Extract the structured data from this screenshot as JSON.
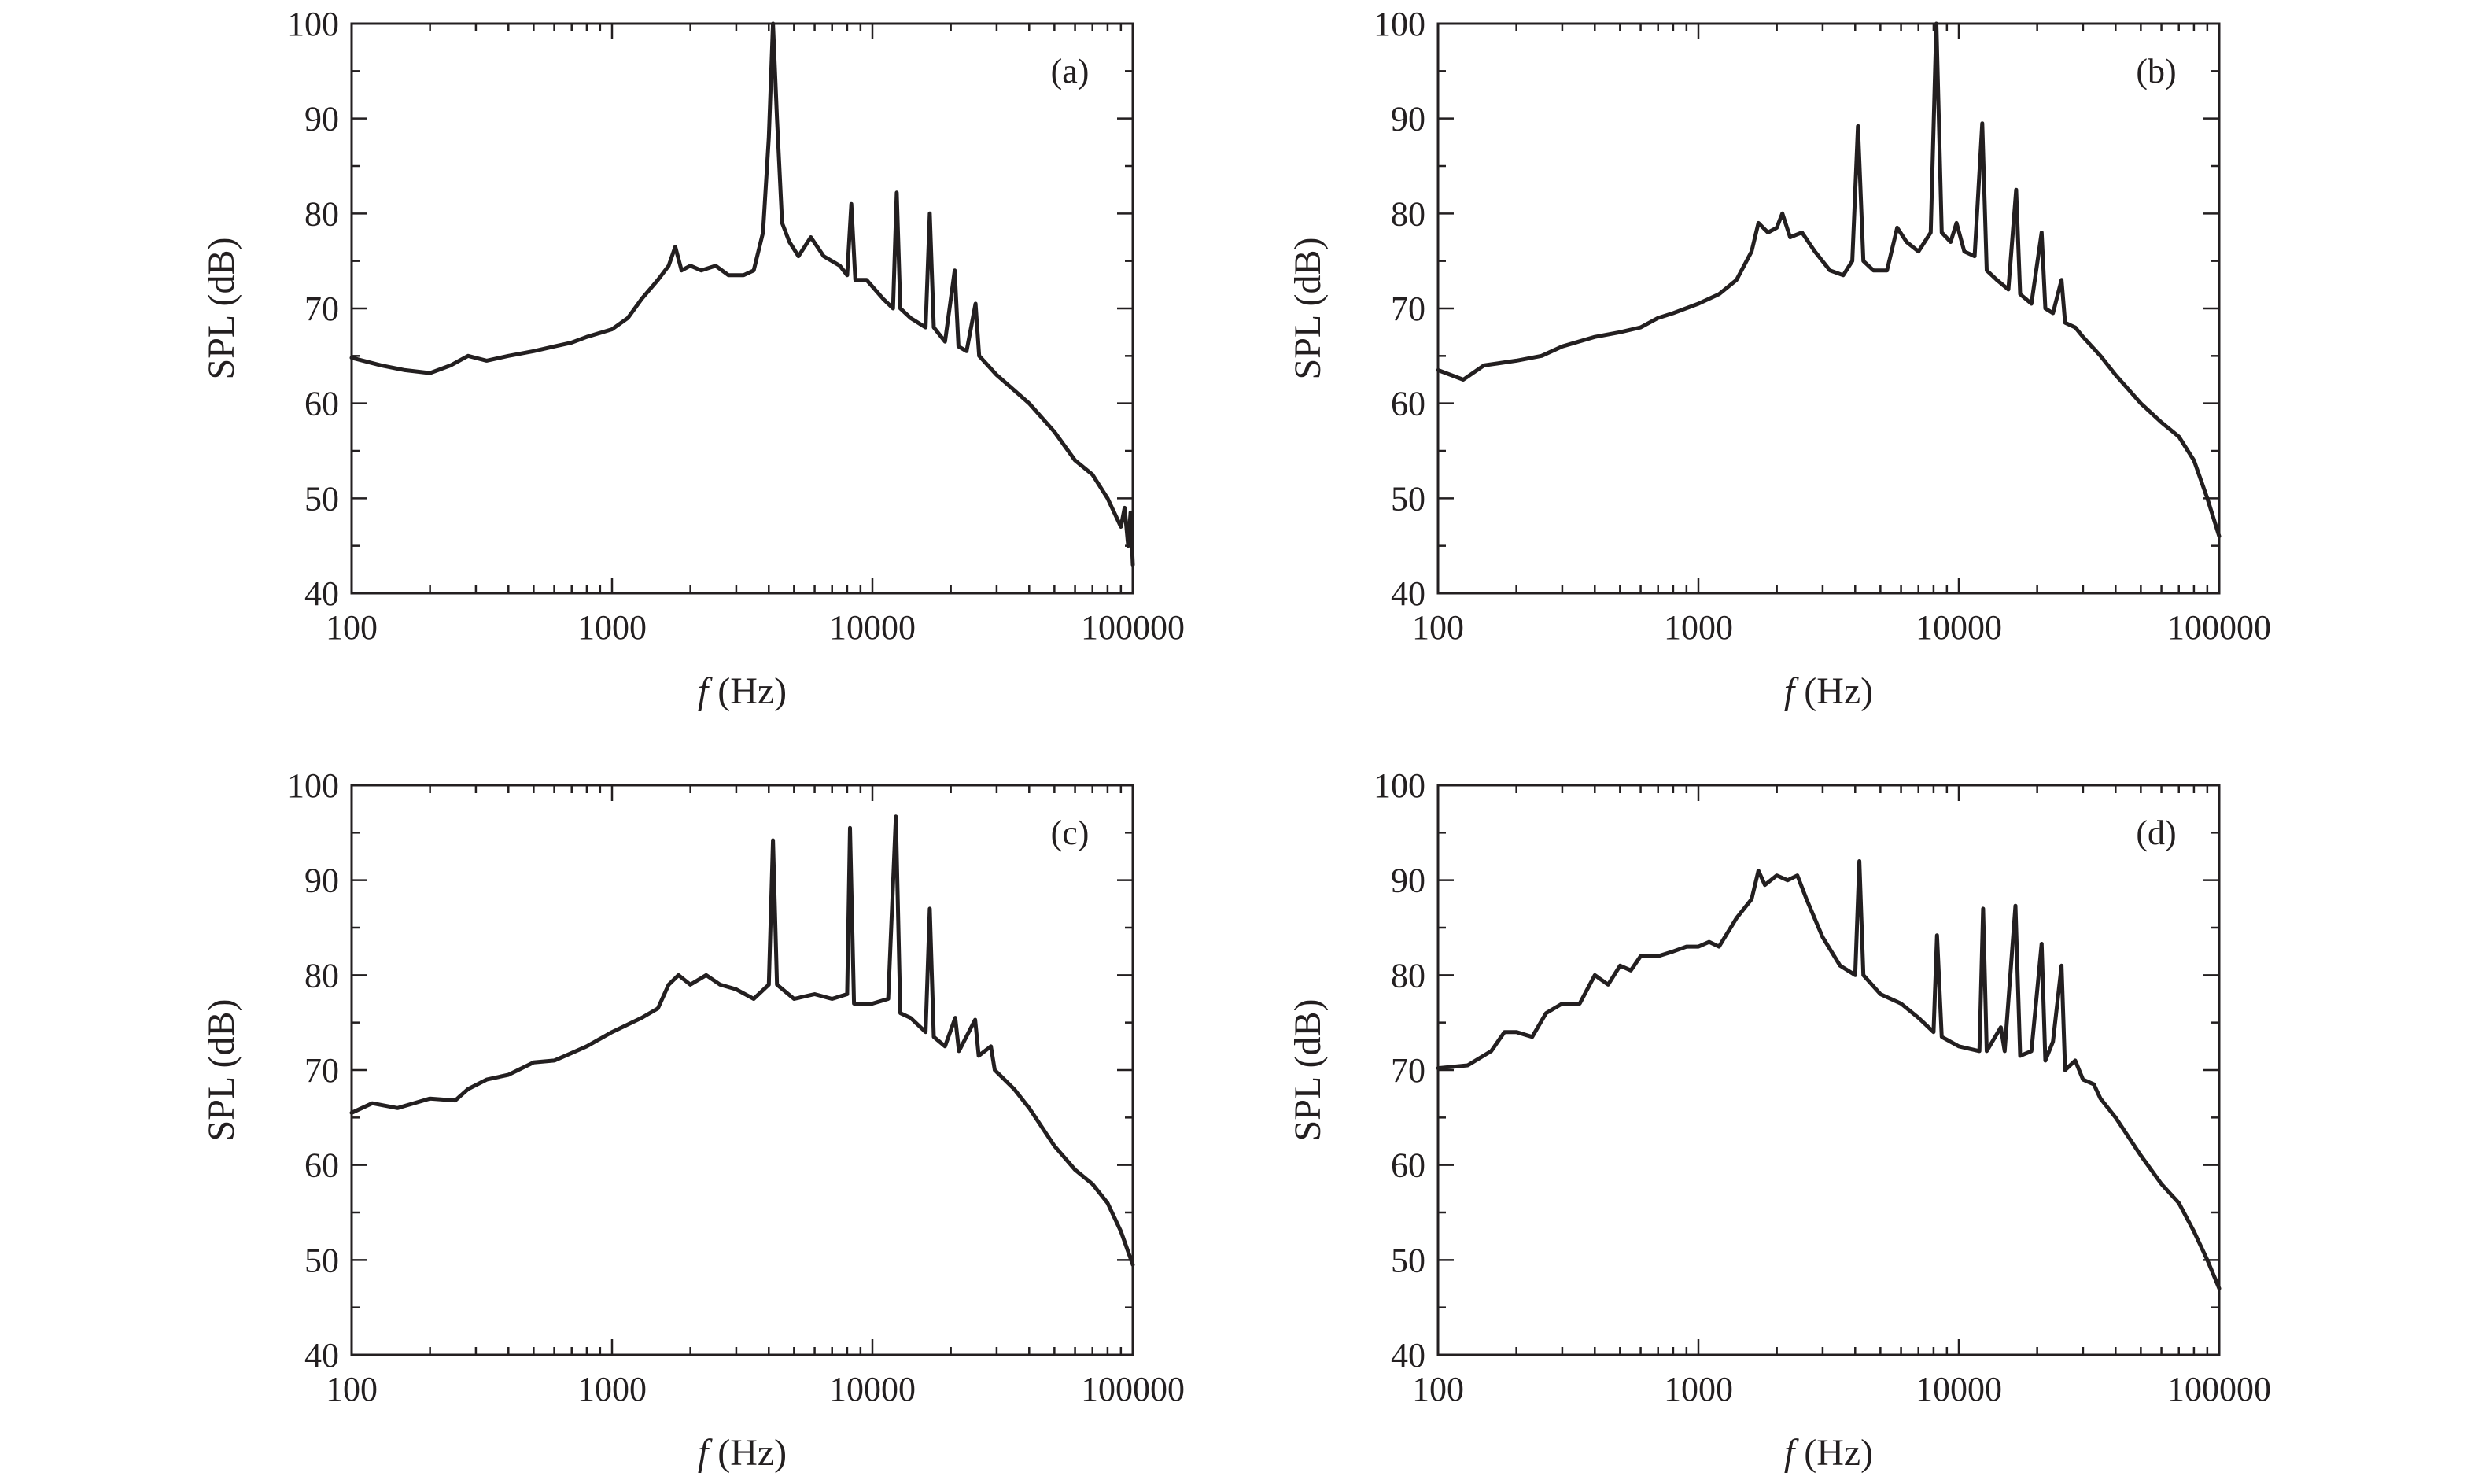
{
  "chart_data": [
    {
      "type": "line",
      "panel_label": "(a)",
      "xlabel_italic": "f",
      "xlabel_rest": " (Hz)",
      "ylabel": "SPL (dB)",
      "xscale": "log",
      "xlim": [
        100,
        100000
      ],
      "ylim": [
        40,
        100
      ],
      "xticks": [
        100,
        1000,
        10000,
        100000
      ],
      "xtick_labels": [
        "100",
        "1000",
        "10000",
        "100000"
      ],
      "yticks": [
        40,
        50,
        60,
        70,
        80,
        90,
        100
      ],
      "ytick_labels": [
        "40",
        "50",
        "60",
        "70",
        "80",
        "90",
        "100"
      ],
      "grid": false,
      "series": [
        {
          "color": "#231f20",
          "points": [
            [
              100,
              64.8
            ],
            [
              130,
              64
            ],
            [
              160,
              63.5
            ],
            [
              200,
              63.2
            ],
            [
              240,
              64
            ],
            [
              280,
              65
            ],
            [
              330,
              64.5
            ],
            [
              400,
              65
            ],
            [
              500,
              65.5
            ],
            [
              600,
              66
            ],
            [
              700,
              66.4
            ],
            [
              800,
              67
            ],
            [
              1000,
              67.8
            ],
            [
              1150,
              69
            ],
            [
              1300,
              71
            ],
            [
              1500,
              73
            ],
            [
              1650,
              74.5
            ],
            [
              1750,
              76.5
            ],
            [
              1850,
              74
            ],
            [
              2000,
              74.5
            ],
            [
              2200,
              74
            ],
            [
              2500,
              74.5
            ],
            [
              2800,
              73.5
            ],
            [
              3200,
              73.5
            ],
            [
              3500,
              74
            ],
            [
              3800,
              78
            ],
            [
              4000,
              88
            ],
            [
              4150,
              100
            ],
            [
              4300,
              90
            ],
            [
              4500,
              79
            ],
            [
              4800,
              77
            ],
            [
              5200,
              75.5
            ],
            [
              5800,
              77.5
            ],
            [
              6500,
              75.5
            ],
            [
              7500,
              74.5
            ],
            [
              8000,
              73.5
            ],
            [
              8300,
              81
            ],
            [
              8600,
              73
            ],
            [
              9500,
              73
            ],
            [
              11000,
              71
            ],
            [
              12000,
              70
            ],
            [
              12400,
              82.2
            ],
            [
              12800,
              70
            ],
            [
              14000,
              69
            ],
            [
              16000,
              68
            ],
            [
              16600,
              80
            ],
            [
              17200,
              68
            ],
            [
              19000,
              66.5
            ],
            [
              20700,
              74
            ],
            [
              21400,
              66
            ],
            [
              23000,
              65.5
            ],
            [
              24900,
              70.5
            ],
            [
              25700,
              65
            ],
            [
              30000,
              63
            ],
            [
              40000,
              60
            ],
            [
              50000,
              57
            ],
            [
              60000,
              54
            ],
            [
              70000,
              52.5
            ],
            [
              80000,
              50
            ],
            [
              90000,
              47
            ],
            [
              93000,
              49
            ],
            [
              96000,
              45
            ],
            [
              98000,
              48.5
            ],
            [
              100000,
              43
            ]
          ]
        }
      ]
    },
    {
      "type": "line",
      "panel_label": "(b)",
      "xlabel_italic": "f",
      "xlabel_rest": " (Hz)",
      "ylabel": "SPL (dB)",
      "xscale": "log",
      "xlim": [
        100,
        100000
      ],
      "ylim": [
        40,
        100
      ],
      "xticks": [
        100,
        1000,
        10000,
        100000
      ],
      "xtick_labels": [
        "100",
        "1000",
        "10000",
        "100000"
      ],
      "yticks": [
        40,
        50,
        60,
        70,
        80,
        90,
        100
      ],
      "ytick_labels": [
        "40",
        "50",
        "60",
        "70",
        "80",
        "90",
        "100"
      ],
      "grid": false,
      "series": [
        {
          "color": "#231f20",
          "points": [
            [
              100,
              63.5
            ],
            [
              125,
              62.5
            ],
            [
              150,
              64
            ],
            [
              200,
              64.5
            ],
            [
              250,
              65
            ],
            [
              300,
              66
            ],
            [
              400,
              67
            ],
            [
              500,
              67.5
            ],
            [
              600,
              68
            ],
            [
              700,
              69
            ],
            [
              800,
              69.5
            ],
            [
              1000,
              70.5
            ],
            [
              1200,
              71.5
            ],
            [
              1400,
              73
            ],
            [
              1600,
              76
            ],
            [
              1700,
              79
            ],
            [
              1850,
              78
            ],
            [
              2000,
              78.5
            ],
            [
              2100,
              80
            ],
            [
              2250,
              77.5
            ],
            [
              2500,
              78
            ],
            [
              2800,
              76
            ],
            [
              3200,
              74
            ],
            [
              3600,
              73.5
            ],
            [
              3900,
              75
            ],
            [
              4100,
              89.2
            ],
            [
              4300,
              75
            ],
            [
              4700,
              74
            ],
            [
              5300,
              74
            ],
            [
              5800,
              78.5
            ],
            [
              6300,
              77
            ],
            [
              7000,
              76
            ],
            [
              7800,
              78
            ],
            [
              8200,
              100
            ],
            [
              8600,
              78
            ],
            [
              9300,
              77
            ],
            [
              9800,
              79
            ],
            [
              10500,
              76
            ],
            [
              11500,
              75.5
            ],
            [
              12300,
              89.5
            ],
            [
              12800,
              74
            ],
            [
              14000,
              73
            ],
            [
              15500,
              72
            ],
            [
              16600,
              82.5
            ],
            [
              17200,
              71.5
            ],
            [
              19000,
              70.5
            ],
            [
              20800,
              78
            ],
            [
              21500,
              70
            ],
            [
              23000,
              69.5
            ],
            [
              24800,
              73
            ],
            [
              25600,
              68.5
            ],
            [
              28000,
              68
            ],
            [
              30000,
              67
            ],
            [
              35000,
              65
            ],
            [
              40000,
              63
            ],
            [
              50000,
              60
            ],
            [
              60000,
              58
            ],
            [
              70000,
              56.5
            ],
            [
              80000,
              54
            ],
            [
              90000,
              50
            ],
            [
              100000,
              46
            ]
          ]
        }
      ]
    },
    {
      "type": "line",
      "panel_label": "(c)",
      "xlabel_italic": "f",
      "xlabel_rest": " (Hz)",
      "ylabel": "SPL (dB)",
      "xscale": "log",
      "xlim": [
        100,
        100000
      ],
      "ylim": [
        40,
        100
      ],
      "xticks": [
        100,
        1000,
        10000,
        100000
      ],
      "xtick_labels": [
        "100",
        "1000",
        "10000",
        "100000"
      ],
      "yticks": [
        40,
        50,
        60,
        70,
        80,
        90,
        100
      ],
      "ytick_labels": [
        "40",
        "50",
        "60",
        "70",
        "80",
        "90",
        "100"
      ],
      "grid": false,
      "series": [
        {
          "color": "#231f20",
          "points": [
            [
              100,
              65.5
            ],
            [
              120,
              66.5
            ],
            [
              150,
              66
            ],
            [
              200,
              67
            ],
            [
              250,
              66.8
            ],
            [
              280,
              68
            ],
            [
              330,
              69
            ],
            [
              400,
              69.5
            ],
            [
              500,
              70.8
            ],
            [
              600,
              71
            ],
            [
              700,
              71.8
            ],
            [
              800,
              72.5
            ],
            [
              1000,
              74
            ],
            [
              1300,
              75.5
            ],
            [
              1500,
              76.5
            ],
            [
              1650,
              79
            ],
            [
              1800,
              80
            ],
            [
              2000,
              79
            ],
            [
              2300,
              80
            ],
            [
              2600,
              79
            ],
            [
              3000,
              78.5
            ],
            [
              3500,
              77.5
            ],
            [
              4000,
              79
            ],
            [
              4150,
              94.2
            ],
            [
              4300,
              79
            ],
            [
              5000,
              77.5
            ],
            [
              6000,
              78
            ],
            [
              7000,
              77.5
            ],
            [
              8000,
              78
            ],
            [
              8200,
              95.5
            ],
            [
              8500,
              77
            ],
            [
              10000,
              77
            ],
            [
              11500,
              77.5
            ],
            [
              12300,
              96.7
            ],
            [
              12800,
              76
            ],
            [
              14000,
              75.5
            ],
            [
              16000,
              74
            ],
            [
              16600,
              87
            ],
            [
              17200,
              73.5
            ],
            [
              19000,
              72.5
            ],
            [
              20800,
              75.5
            ],
            [
              21500,
              72
            ],
            [
              24800,
              75.3
            ],
            [
              25600,
              71.5
            ],
            [
              28500,
              72.5
            ],
            [
              29500,
              70
            ],
            [
              35000,
              68
            ],
            [
              40000,
              66
            ],
            [
              50000,
              62
            ],
            [
              60000,
              59.5
            ],
            [
              70000,
              58
            ],
            [
              80000,
              56
            ],
            [
              90000,
              53
            ],
            [
              100000,
              49.5
            ]
          ]
        }
      ]
    },
    {
      "type": "line",
      "panel_label": "(d)",
      "xlabel_italic": "f",
      "xlabel_rest": " (Hz)",
      "ylabel": "SPL (dB)",
      "xscale": "log",
      "xlim": [
        100,
        100000
      ],
      "ylim": [
        40,
        100
      ],
      "xticks": [
        100,
        1000,
        10000,
        100000
      ],
      "xtick_labels": [
        "100",
        "1000",
        "10000",
        "100000"
      ],
      "yticks": [
        40,
        50,
        60,
        70,
        80,
        90,
        100
      ],
      "ytick_labels": [
        "40",
        "50",
        "60",
        "70",
        "80",
        "90",
        "100"
      ],
      "grid": false,
      "series": [
        {
          "color": "#231f20",
          "points": [
            [
              100,
              70.2
            ],
            [
              130,
              70.5
            ],
            [
              160,
              72
            ],
            [
              180,
              74
            ],
            [
              200,
              74
            ],
            [
              230,
              73.5
            ],
            [
              260,
              76
            ],
            [
              300,
              77
            ],
            [
              350,
              77
            ],
            [
              400,
              80
            ],
            [
              450,
              79
            ],
            [
              500,
              81
            ],
            [
              550,
              80.5
            ],
            [
              600,
              82
            ],
            [
              700,
              82
            ],
            [
              800,
              82.5
            ],
            [
              900,
              83
            ],
            [
              1000,
              83
            ],
            [
              1100,
              83.5
            ],
            [
              1200,
              83
            ],
            [
              1400,
              86
            ],
            [
              1600,
              88
            ],
            [
              1700,
              91
            ],
            [
              1800,
              89.5
            ],
            [
              2000,
              90.5
            ],
            [
              2200,
              90
            ],
            [
              2400,
              90.5
            ],
            [
              2600,
              88
            ],
            [
              3000,
              84
            ],
            [
              3500,
              81
            ],
            [
              4000,
              80
            ],
            [
              4150,
              92
            ],
            [
              4300,
              80
            ],
            [
              5000,
              78
            ],
            [
              6000,
              77
            ],
            [
              7000,
              75.5
            ],
            [
              8000,
              74
            ],
            [
              8250,
              84.2
            ],
            [
              8600,
              73.5
            ],
            [
              10000,
              72.5
            ],
            [
              12000,
              72
            ],
            [
              12400,
              87
            ],
            [
              12800,
              72
            ],
            [
              14500,
              74.5
            ],
            [
              15000,
              72
            ],
            [
              16500,
              87.3
            ],
            [
              17200,
              71.5
            ],
            [
              19000,
              72
            ],
            [
              20800,
              83.3
            ],
            [
              21500,
              71
            ],
            [
              23000,
              73
            ],
            [
              24800,
              81
            ],
            [
              25600,
              70
            ],
            [
              28000,
              71
            ],
            [
              30000,
              69
            ],
            [
              33000,
              68.5
            ],
            [
              35000,
              67
            ],
            [
              40000,
              65
            ],
            [
              50000,
              61
            ],
            [
              60000,
              58
            ],
            [
              70000,
              56
            ],
            [
              80000,
              53
            ],
            [
              90000,
              50
            ],
            [
              100000,
              47
            ]
          ]
        }
      ]
    }
  ]
}
